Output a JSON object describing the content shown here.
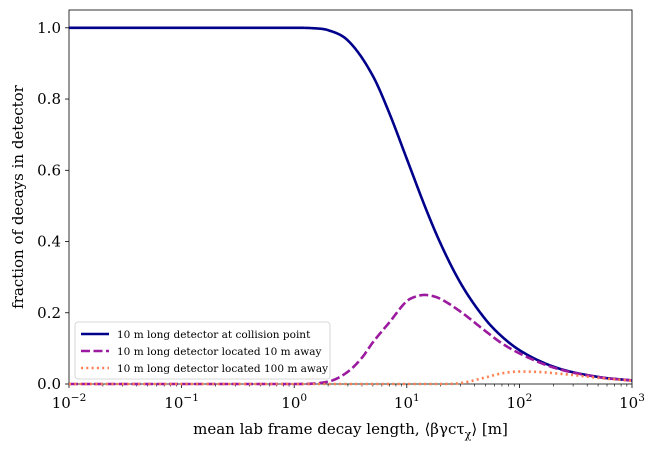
{
  "chart_data": {
    "type": "line",
    "title": "",
    "xlabel": "mean lab frame decay length, ⟨βγcτχ⟩ [m]",
    "ylabel": "fraction of decays in detector",
    "xscale": "log",
    "xlim": [
      0.01,
      1000
    ],
    "ylim": [
      0.0,
      1.05
    ],
    "x_ticks": [
      {
        "value": 0.01,
        "base": "10",
        "exp": "−2"
      },
      {
        "value": 0.1,
        "base": "10",
        "exp": "−1"
      },
      {
        "value": 1,
        "base": "10",
        "exp": "0"
      },
      {
        "value": 10,
        "base": "10",
        "exp": "1"
      },
      {
        "value": 100,
        "base": "10",
        "exp": "2"
      },
      {
        "value": 1000,
        "base": "10",
        "exp": "3"
      }
    ],
    "y_ticks": [
      {
        "value": 0.0,
        "label": "0.0"
      },
      {
        "value": 0.2,
        "label": "0.2"
      },
      {
        "value": 0.4,
        "label": "0.4"
      },
      {
        "value": 0.6,
        "label": "0.6"
      },
      {
        "value": 0.8,
        "label": "0.8"
      },
      {
        "value": 1.0,
        "label": "1.0"
      }
    ],
    "legend_position": "bottom-left",
    "series": [
      {
        "name": "10 m long detector at collision point",
        "color": "#00008b",
        "dash": "solid",
        "x": [
          0.01,
          0.1,
          1,
          1.5,
          2,
          3,
          5,
          7,
          10,
          15,
          20,
          30,
          50,
          70,
          100,
          200,
          500,
          1000
        ],
        "y": [
          1.0,
          1.0,
          1.0,
          0.9987,
          0.9933,
          0.9643,
          0.8647,
          0.7603,
          0.6321,
          0.4866,
          0.3935,
          0.2835,
          0.1813,
          0.1331,
          0.0952,
          0.0488,
          0.0198,
          0.00995
        ]
      },
      {
        "name": "10 m long detector located 10 m away",
        "color": "#9b1a9f",
        "dash": "dashed",
        "x": [
          0.01,
          1,
          2,
          3,
          4,
          5,
          7,
          10,
          12,
          14.4,
          17,
          20,
          30,
          50,
          70,
          100,
          200,
          500,
          1000
        ],
        "y": [
          0.0,
          0.0,
          0.0067,
          0.0346,
          0.0739,
          0.117,
          0.1729,
          0.2325,
          0.2455,
          0.25,
          0.2469,
          0.2387,
          0.2031,
          0.1484,
          0.114,
          0.0861,
          0.0464,
          0.0194,
          0.0099
        ]
      },
      {
        "name": "10 m long detector located 100 m away",
        "color": "#ff7f50",
        "dash": "dotted",
        "x": [
          0.01,
          10,
          20,
          30,
          50,
          70,
          100,
          150,
          200,
          300,
          500,
          1000
        ],
        "y": [
          0.0,
          0.0,
          0.0,
          0.0025,
          0.0185,
          0.03,
          0.035,
          0.0338,
          0.0305,
          0.0251,
          0.0172,
          0.0091
        ]
      }
    ]
  }
}
